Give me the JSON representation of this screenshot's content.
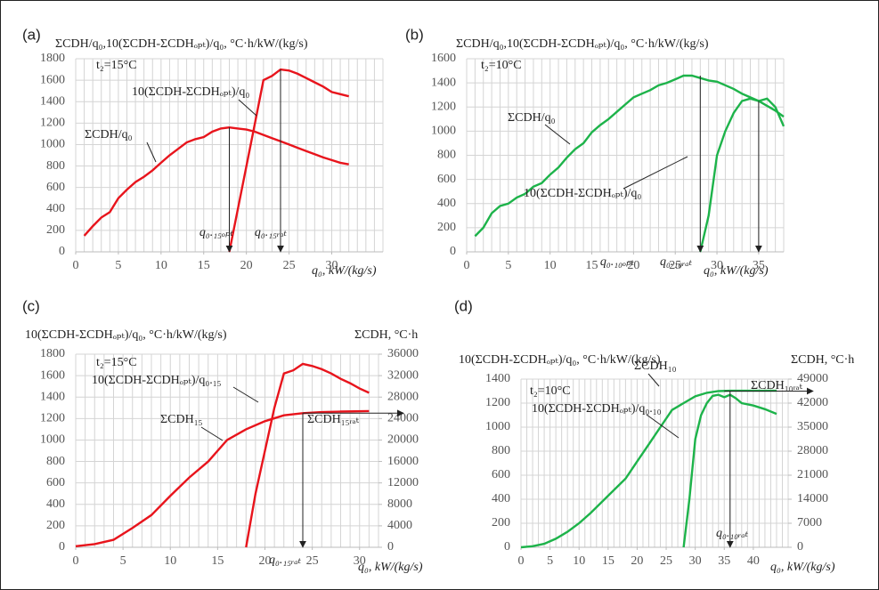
{
  "chart_data": [
    {
      "type": "line",
      "panel_label": "(a)",
      "y_label": "ΣCDH/q₀,10(ΣCDH-ΣCDHₒₚₜ)/q₀, °C·h/kW/(kg/s)",
      "x_label": "q₀, kW/(kg/s)",
      "annotations": [
        "t₂=15°C",
        "10(ΣCDH-ΣCDHₒₚₜ)/q₀",
        "ΣCDH/q₀"
      ],
      "xlim": [
        0,
        36
      ],
      "xticks": [
        0,
        5,
        10,
        15,
        20,
        25,
        30
      ],
      "ylim": [
        0,
        1800
      ],
      "yticks": [
        0,
        200,
        400,
        600,
        800,
        1000,
        1200,
        1400,
        1600,
        1800
      ],
      "grid": true,
      "series": [
        {
          "color": "#e8141c",
          "x": [
            1,
            2,
            3,
            4,
            5,
            6,
            7,
            8,
            9,
            10,
            11,
            12,
            13,
            14,
            15,
            16,
            17,
            18,
            19,
            20,
            21,
            22,
            23,
            24,
            25,
            26,
            27,
            28,
            29,
            30,
            31,
            32
          ],
          "values": [
            150,
            240,
            320,
            370,
            500,
            580,
            650,
            700,
            760,
            830,
            900,
            960,
            1020,
            1050,
            1070,
            1120,
            1150,
            1160,
            1150,
            1140,
            1120,
            1090,
            1060,
            1030,
            1000,
            970,
            940,
            910,
            880,
            855,
            830,
            815
          ]
        },
        {
          "color": "#e8141c",
          "x": [
            18,
            19,
            20,
            21,
            22,
            23,
            24,
            25,
            26,
            27,
            28,
            29,
            30,
            31,
            32
          ],
          "values": [
            0,
            400,
            800,
            1200,
            1600,
            1640,
            1700,
            1690,
            1660,
            1620,
            1580,
            1540,
            1490,
            1470,
            1450
          ]
        }
      ],
      "vlines": [
        {
          "x": 18,
          "y": 1160,
          "label": "q₀.₁₅ₒₚₜ"
        },
        {
          "x": 24,
          "y": 1700,
          "label": "q₀.₁₅ᵣₐₜ"
        }
      ]
    },
    {
      "type": "line",
      "panel_label": "(b)",
      "y_label": "ΣCDH/q₀,10(ΣCDH-ΣCDHₒₚₜ)/q₀, °C·h/kW/(kg/s)",
      "x_label": "q₀, kW/(kg/s)",
      "annotations": [
        "t₂=10°C",
        "ΣCDH/q₀",
        "10(ΣCDH-ΣCDHₒₚₜ)/q₀"
      ],
      "xlim": [
        0,
        38
      ],
      "xticks": [
        0,
        5,
        10,
        15,
        20,
        25,
        30,
        35
      ],
      "ylim": [
        0,
        1600
      ],
      "yticks": [
        0,
        200,
        400,
        600,
        800,
        1000,
        1200,
        1400,
        1600
      ],
      "grid": true,
      "series": [
        {
          "color": "#1db34a",
          "x": [
            1,
            2,
            3,
            4,
            5,
            6,
            7,
            8,
            9,
            10,
            11,
            12,
            13,
            14,
            15,
            16,
            17,
            18,
            19,
            20,
            21,
            22,
            23,
            24,
            25,
            26,
            27,
            28,
            29,
            30,
            31,
            32,
            33,
            34,
            35,
            36,
            37,
            38
          ],
          "values": [
            130,
            200,
            320,
            380,
            400,
            450,
            480,
            540,
            570,
            640,
            700,
            780,
            850,
            900,
            990,
            1050,
            1100,
            1160,
            1220,
            1280,
            1310,
            1340,
            1380,
            1400,
            1430,
            1460,
            1460,
            1440,
            1420,
            1410,
            1380,
            1350,
            1310,
            1280,
            1250,
            1210,
            1170,
            1120
          ]
        },
        {
          "color": "#1db34a",
          "x": [
            28,
            29,
            30,
            31,
            32,
            33,
            34,
            35,
            36,
            37,
            38
          ],
          "values": [
            0,
            300,
            800,
            1000,
            1150,
            1250,
            1270,
            1250,
            1270,
            1200,
            1040
          ]
        }
      ],
      "vlines": [
        {
          "x": 28,
          "y": 1460,
          "label": "q₀.₁₀ₒₚₜ"
        },
        {
          "x": 35,
          "y": 1250,
          "label": "q₀.₁₀ᵣₐₜ"
        }
      ]
    },
    {
      "type": "line",
      "panel_label": "(c)",
      "y_label": "10(ΣCDH-ΣCDHₒₚₜ)/q₀, °C·h/kW/(kg/s)",
      "y2_label": "ΣCDH, °C·h",
      "x_label": "q₀, kW/(kg/s)",
      "annotations": [
        "t₂=15°C",
        "10(ΣCDH-ΣCDHₒₚₜ)/q₀.₁₅",
        "ΣCDH₁₅"
      ],
      "xlim": [
        0,
        32
      ],
      "xticks": [
        0,
        5,
        10,
        15,
        20,
        25,
        30
      ],
      "ylim": [
        0,
        1800
      ],
      "yticks": [
        0,
        200,
        400,
        600,
        800,
        1000,
        1200,
        1400,
        1600,
        1800
      ],
      "y2lim": [
        0,
        36000
      ],
      "y2ticks": [
        0,
        4000,
        8000,
        12000,
        16000,
        20000,
        24000,
        28000,
        32000,
        36000
      ],
      "grid": true,
      "series": [
        {
          "color": "#e8141c",
          "x": [
            18,
            19,
            20,
            21,
            22,
            23,
            24,
            25,
            26,
            27,
            28,
            29,
            30,
            31
          ],
          "values": [
            0,
            500,
            900,
            1300,
            1620,
            1650,
            1710,
            1690,
            1660,
            1620,
            1570,
            1530,
            1480,
            1440
          ]
        },
        {
          "color": "#e8141c",
          "axis": "y2",
          "x": [
            0,
            2,
            4,
            6,
            8,
            10,
            12,
            14,
            16,
            18,
            20,
            22,
            24,
            26,
            28,
            31
          ],
          "values": [
            200,
            600,
            1400,
            3600,
            6000,
            9600,
            13000,
            16000,
            20000,
            22000,
            23500,
            24600,
            25000,
            25200,
            25300,
            25400
          ]
        }
      ],
      "vlines": [
        {
          "x": 24,
          "y": 1250,
          "label": "q₀.₁₅ᵣₐₜ"
        }
      ],
      "hlines": [
        {
          "x": 24,
          "y": 25000,
          "axis": "y2",
          "label": "ΣCDH₁₅ᵣₐₜ"
        }
      ]
    },
    {
      "type": "line",
      "panel_label": "(d)",
      "y_label": "10(ΣCDH-ΣCDHₒₚₜ)/q₀, °C·h/kW/(kg/s)",
      "y2_label": "ΣCDH, °C·h",
      "x_label": "q₀, kW/(kg/s)",
      "annotations": [
        "t₂=10°C",
        "ΣCDH₁₀",
        "10(ΣCDH-ΣCDHₒₚₜ)/q₀.₁₀"
      ],
      "xlim": [
        0,
        46
      ],
      "xticks": [
        0,
        5,
        10,
        15,
        20,
        25,
        30,
        35,
        40
      ],
      "ylim": [
        0,
        1400
      ],
      "yticks": [
        0,
        200,
        400,
        600,
        800,
        1000,
        1200,
        1400
      ],
      "y2lim": [
        0,
        49000
      ],
      "y2ticks": [
        0,
        7000,
        14000,
        21000,
        28000,
        35000,
        42000,
        49000
      ],
      "grid": true,
      "series": [
        {
          "color": "#1db34a",
          "x": [
            28,
            29,
            30,
            31,
            32,
            33,
            34,
            35,
            36,
            37,
            38,
            40,
            42,
            44
          ],
          "values": [
            0,
            400,
            900,
            1100,
            1200,
            1260,
            1270,
            1250,
            1270,
            1240,
            1200,
            1180,
            1150,
            1110
          ]
        },
        {
          "color": "#1db34a",
          "axis": "y2",
          "x": [
            0,
            2,
            4,
            6,
            8,
            10,
            12,
            15,
            18,
            20,
            22,
            24,
            26,
            28,
            30,
            32,
            34,
            36,
            40,
            44
          ],
          "values": [
            0,
            300,
            1000,
            2500,
            4500,
            7000,
            10000,
            15000,
            20000,
            25000,
            30000,
            35000,
            40000,
            42000,
            44000,
            45000,
            45500,
            45600,
            45600,
            45600
          ]
        }
      ],
      "vlines": [
        {
          "x": 36,
          "y": 45600,
          "axis": "y2",
          "label": "q₀.₁₀ᵣₐₜ"
        }
      ],
      "hlines": [
        {
          "x": 35,
          "y": 45500,
          "axis": "y2",
          "label": "ΣCDH₁₀ᵣₐₜ"
        }
      ]
    }
  ]
}
